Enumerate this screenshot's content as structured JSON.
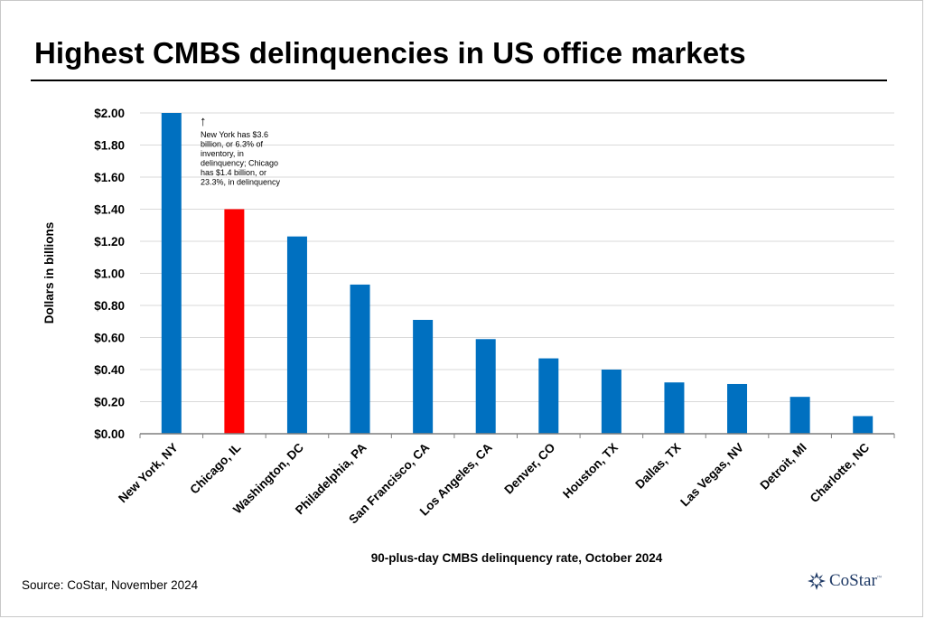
{
  "title": "Highest CMBS delinquencies in US office markets",
  "source": "Source: CoStar, November 2024",
  "logo_text": "CoStar",
  "logo_tm": "™",
  "colors": {
    "default_bar": "#0070c0",
    "highlight_bar": "#ff0000",
    "logo": "#1f3a66"
  },
  "chart_data": {
    "type": "bar",
    "categories": [
      "New York, NY",
      "Chicago, IL",
      "Washington, DC",
      "Philadelphia, PA",
      "San Francisco, CA",
      "Los Angeles, CA",
      "Denver, CO",
      "Houston, TX",
      "Dallas, TX",
      "Las Vegas, NV",
      "Detroit, MI",
      "Charlotte, NC"
    ],
    "values": [
      2.0,
      1.4,
      1.23,
      0.93,
      0.71,
      0.59,
      0.47,
      0.4,
      0.32,
      0.31,
      0.23,
      0.11
    ],
    "highlight_category": "Chicago, IL",
    "xlabel": "90-plus-day CMBS delinquency rate, October 2024",
    "ylabel": "Dollars in billions",
    "ylim": [
      0,
      2.0
    ],
    "yticks": [
      "$0.00",
      "$0.20",
      "$0.40",
      "$0.60",
      "$0.80",
      "$1.00",
      "$1.20",
      "$1.40",
      "$1.60",
      "$1.80",
      "$2.00"
    ],
    "grid": true,
    "annotation": {
      "arrow": "↑",
      "lines": [
        "New York has $3.6",
        "billion, or 6.3% of",
        "inventory, in",
        "delinquency; Chicago",
        "has $1.4 billion, or",
        "23.3%, in delinquency"
      ]
    }
  }
}
